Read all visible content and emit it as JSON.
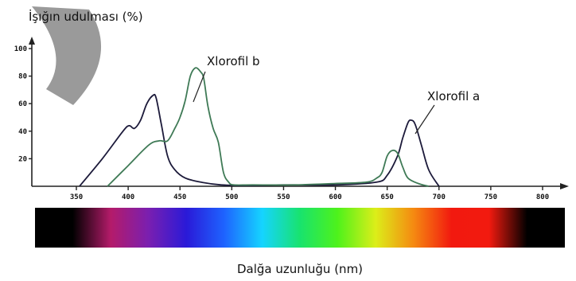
{
  "chart_data": {
    "type": "line",
    "ylabel": "İşığın udulması  (%)",
    "xlabel": "Dalğa uzunluğu (nm)",
    "xlim": [
      340,
      810
    ],
    "ylim": [
      0,
      100
    ],
    "x_ticks": [
      "350",
      "400",
      "450",
      "500",
      "550",
      "600",
      "650",
      "700",
      "750",
      "800"
    ],
    "y_ticks": [
      "20",
      "40",
      "60",
      "80",
      "100"
    ],
    "grid": false,
    "series": [
      {
        "name": "Xlorofil a",
        "color": "#1c1a3a",
        "x": [
          353,
          375,
          395,
          401,
          406,
          412,
          418,
          424,
          427,
          432,
          438,
          445,
          455,
          470,
          490,
          520,
          550,
          600,
          640,
          650,
          660,
          665,
          670,
          673,
          677,
          683,
          690,
          700
        ],
        "y": [
          0,
          20,
          40,
          44,
          42,
          48,
          60,
          66,
          64,
          45,
          22,
          12,
          6,
          3,
          1,
          0.5,
          1,
          1,
          3,
          8,
          22,
          35,
          46,
          48,
          45,
          30,
          12,
          0
        ]
      },
      {
        "name": "Xlorofil b",
        "color": "#3f7a56",
        "x": [
          380,
          400,
          420,
          430,
          438,
          445,
          450,
          455,
          460,
          465,
          470,
          473,
          477,
          482,
          487,
          492,
          497,
          502,
          520,
          560,
          600,
          630,
          640,
          645,
          650,
          655,
          660,
          665,
          670,
          680,
          690
        ],
        "y": [
          0,
          15,
          30,
          33,
          33,
          42,
          50,
          62,
          80,
          86,
          83,
          78,
          58,
          42,
          32,
          10,
          3,
          1,
          1,
          1,
          2,
          3,
          6,
          10,
          22,
          26,
          24,
          14,
          6,
          2,
          0
        ]
      }
    ],
    "spectrum_colors": [
      "#000000",
      "#000000",
      "#b41b6a",
      "#7a1fb0",
      "#2a1ad8",
      "#1e63ff",
      "#15d4ff",
      "#18e36e",
      "#4ef21b",
      "#dcee19",
      "#f58a11",
      "#f2190f",
      "#f21a0f",
      "#000000",
      "#000000"
    ]
  }
}
